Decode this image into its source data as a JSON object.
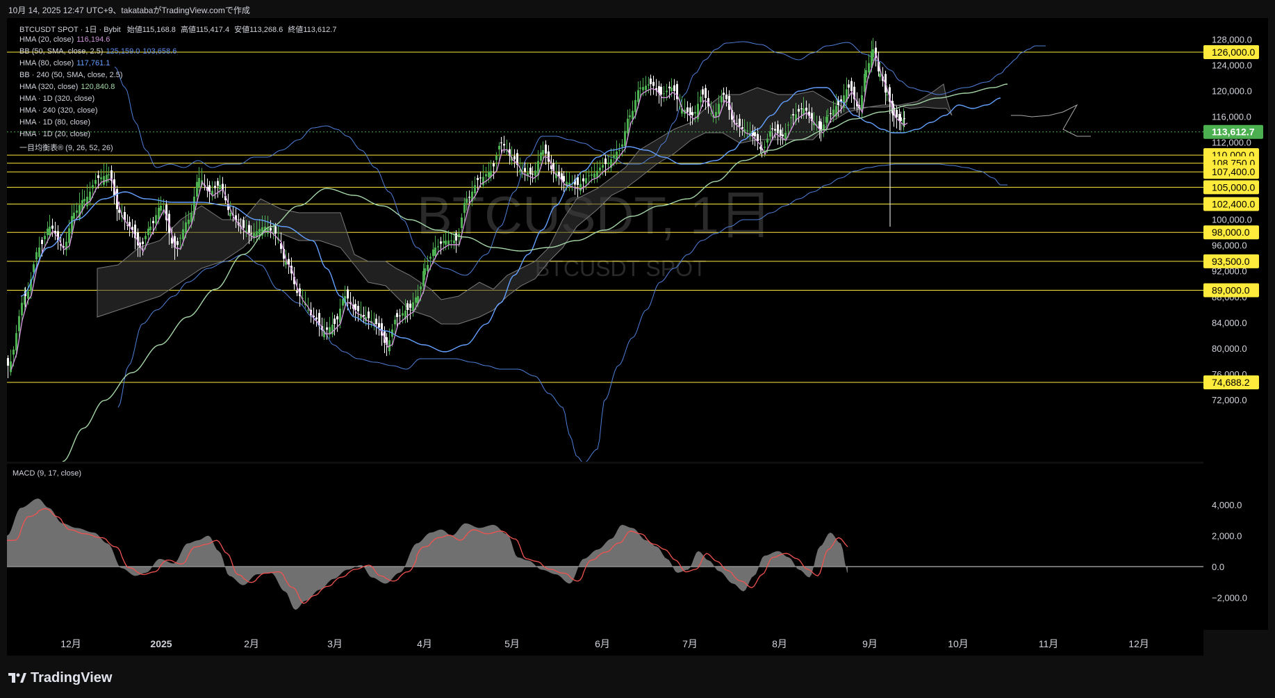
{
  "header": {
    "info_line": "10月 14, 2025 12:47 UTC+9、takatabaがTradingView.comで作成"
  },
  "symbol": {
    "name": "BTCUSDT SPOT · 1日 · Bybit",
    "open_label": "始値",
    "open": "115,168.8",
    "high_label": "高値",
    "high": "115,417.4",
    "low_label": "安値",
    "low": "113,268.6",
    "close_label": "終値",
    "close": "113,612.7"
  },
  "watermark": {
    "big": "BTCUSDT, 1日",
    "small": "BTCUSDT SPOT"
  },
  "indicators": [
    {
      "label": "HMA (20, close)",
      "value": "116,194.6",
      "color": "#ce93d8"
    },
    {
      "label": "BB (50, SMA, close, 2.5)",
      "value": "125,159.0",
      "value2": "103,658.6",
      "color": "#5b8def"
    },
    {
      "label": "HMA (80, close)",
      "value": "117,761.1",
      "color": "#64a0ff"
    },
    {
      "label": "BB · 240 (50, SMA, close, 2.5)",
      "value": "",
      "color": "#5b8def"
    },
    {
      "label": "HMA (320, close)",
      "value": "120,840.8",
      "color": "#a5d6a7"
    },
    {
      "label": "HMA · 1D (320, close)",
      "value": ""
    },
    {
      "label": "HMA · 240 (320, close)",
      "value": ""
    },
    {
      "label": "HMA · 1D (80, close)",
      "value": ""
    },
    {
      "label": "HMA · 1D (20, close)",
      "value": ""
    },
    {
      "label": "一目均衡表® (9, 26, 52, 26)",
      "value": ""
    }
  ],
  "macd": {
    "label": "MACD (9, 17, close)"
  },
  "price_scale": {
    "ticks": [
      "128,000.0",
      "124,000.0",
      "120,000.0",
      "116,000.0",
      "112,000.0",
      "100,000.0",
      "96,000.0",
      "92,000.0",
      "88,000.0",
      "84,000.0",
      "80,000.0",
      "76,000.0",
      "72,000.0"
    ],
    "tick_values": [
      128000,
      124000,
      120000,
      116000,
      112000,
      100000,
      96000,
      92000,
      88000,
      84000,
      80000,
      76000,
      72000
    ],
    "current_price": "113,612.7",
    "current_value": 113612.7,
    "levels": [
      "126,000.0",
      "110,000.0",
      "108,750.0",
      "107,400.0",
      "105,000.0",
      "102,400.0",
      "98,000.0",
      "93,500.0",
      "89,000.0",
      "74,688.2"
    ],
    "level_values": [
      126000,
      110000,
      108750,
      107400,
      105000,
      102400,
      98000,
      93500,
      89000,
      74688.2
    ]
  },
  "macd_scale": {
    "ticks": [
      "4,000.0",
      "2,000.0",
      "0.0",
      "−2,000.0"
    ],
    "tick_values": [
      4000,
      2000,
      0,
      -2000
    ]
  },
  "time_axis": {
    "labels": [
      "12月",
      "2025",
      "2月",
      "3月",
      "4月",
      "5月",
      "6月",
      "7月",
      "8月",
      "9月",
      "10月",
      "11月",
      "12月"
    ]
  },
  "colors": {
    "up": "#4caf50",
    "down": "#ffffff",
    "hma20": "#ce93d8",
    "hma80": "#64a0ff",
    "hma320": "#a5d6a7",
    "bb": "#4f7fd9",
    "level": "#ffeb3b",
    "current": "#4caf50",
    "macd_signal": "#ef5350",
    "macd_hist": "#8c8c8c"
  },
  "footer": {
    "brand": "TradingView"
  }
}
